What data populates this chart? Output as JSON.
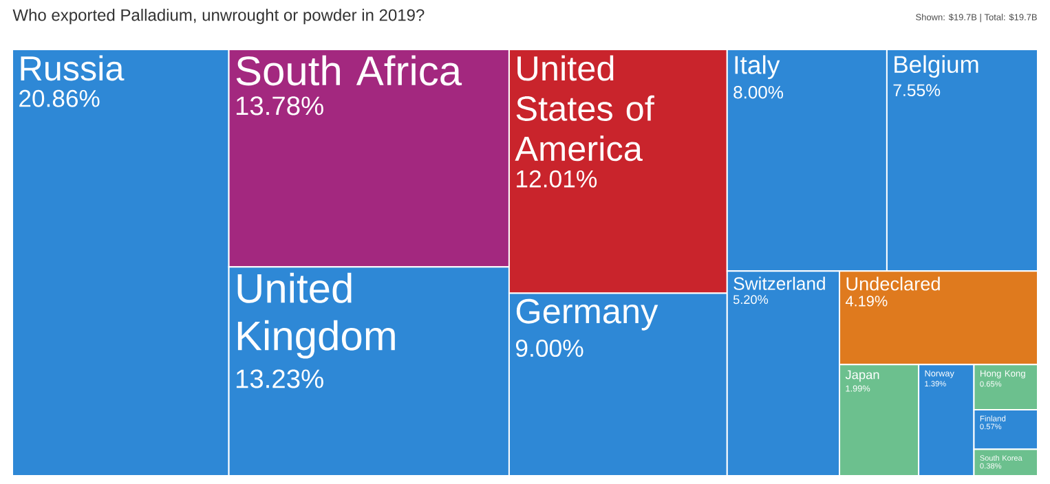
{
  "chart_data": {
    "type": "other",
    "title": "Who exported Palladium, unwrought or powder in 2019?",
    "annotations": [
      "Shown: $19.7B | Total: $19.7B"
    ],
    "categories": [
      "Russia",
      "South Africa",
      "United Kingdom",
      "United States of America",
      "Germany",
      "Italy",
      "Belgium",
      "Switzerland",
      "Undeclared",
      "Japan",
      "Norway",
      "Hong Kong",
      "Finland",
      "South Korea"
    ],
    "values": [
      20.86,
      13.78,
      13.23,
      12.01,
      9.0,
      8.0,
      7.55,
      5.2,
      4.19,
      1.99,
      1.39,
      0.65,
      0.57,
      0.38
    ],
    "value_labels": [
      "20.86%",
      "13.78%",
      "13.23%",
      "12.01%",
      "9.00%",
      "8.00%",
      "7.55%",
      "5.20%",
      "4.19%",
      "1.99%",
      "1.39%",
      "0.65%",
      "0.57%",
      "0.38%"
    ],
    "colors": [
      "#2e88d6",
      "#a3287f",
      "#2e88d6",
      "#c9242c",
      "#2e88d6",
      "#2e88d6",
      "#2e88d6",
      "#2e88d6",
      "#df7a1e",
      "#6cc08e",
      "#2e88d6",
      "#6cc08e",
      "#2e88d6",
      "#6cc08e"
    ]
  }
}
